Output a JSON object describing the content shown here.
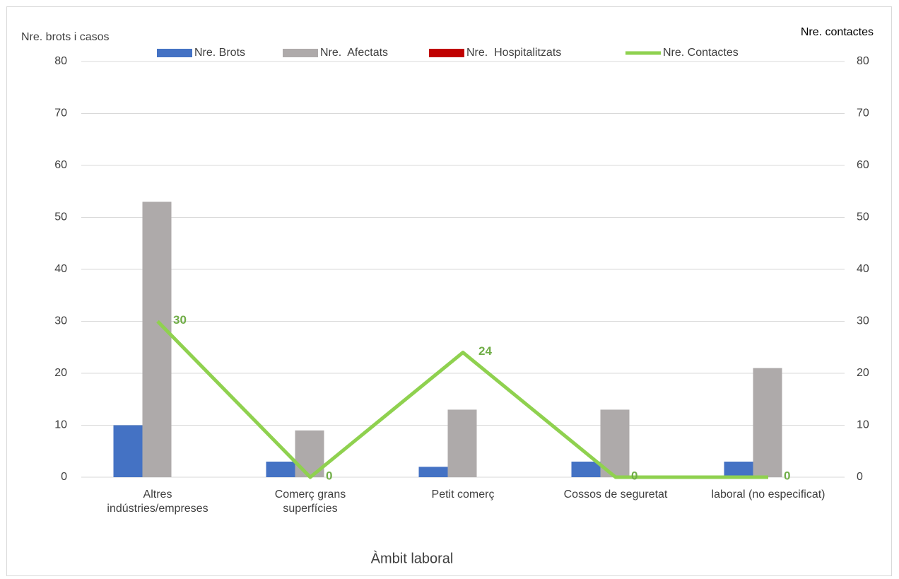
{
  "chart_data": {
    "type": "bar",
    "x_label": "Àmbit laboral",
    "y_label": "Nre. brots i casos",
    "y2_label": "Nre. contactes",
    "categories": [
      "Altres\nindústries/empreses",
      "Comerç grans\nsuperfícies",
      "Petit comerç",
      "Cossos de seguretat",
      "laboral (no especificat)"
    ],
    "series": [
      {
        "name": "Nre. Brots",
        "color": "#4472c4",
        "type": "bar",
        "values": [
          10,
          3,
          2,
          3,
          3
        ]
      },
      {
        "name": "Nre.  Afectats",
        "color": "#aeaaaa",
        "type": "bar",
        "values": [
          53,
          9,
          13,
          13,
          21
        ]
      },
      {
        "name": "Nre.  Hospitalitzats",
        "color": "#c00000",
        "type": "bar",
        "values": [
          0,
          0,
          0,
          0,
          0
        ]
      },
      {
        "name": "Nre. Contactes",
        "color": "#8fd14f",
        "label_color": "#70ad47",
        "type": "line",
        "axis": "y2",
        "values": [
          30,
          0,
          24,
          0,
          0
        ]
      }
    ],
    "ylim": [
      0,
      80
    ],
    "yticks": [
      0,
      10,
      20,
      30,
      40,
      50,
      60,
      70,
      80
    ],
    "y2lim": [
      0,
      80
    ],
    "y2ticks": [
      0,
      10,
      20,
      30,
      40,
      50,
      60,
      70,
      80
    ],
    "grid": true,
    "legend": "top"
  }
}
